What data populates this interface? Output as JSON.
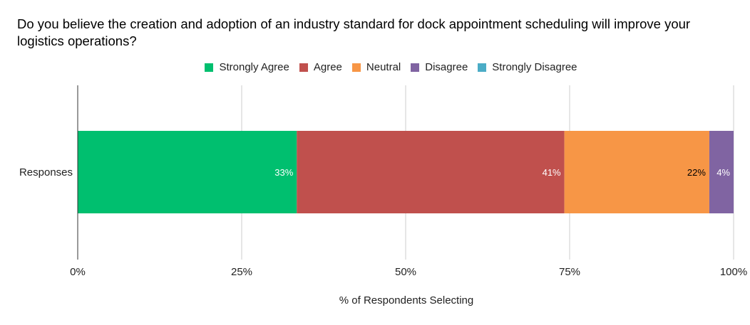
{
  "chart_data": {
    "type": "bar",
    "orientation": "horizontal",
    "stacked": "percent",
    "title": "Do you believe the creation and adoption of an industry standard for dock appointment scheduling will improve your logistics operations?",
    "xlabel": "% of Respondents Selecting",
    "ylabel": "",
    "categories": [
      "Responses"
    ],
    "series": [
      {
        "name": "Strongly Agree",
        "values": [
          33.4
        ],
        "label": "33%",
        "color": "#00bf6f"
      },
      {
        "name": "Agree",
        "values": [
          40.8
        ],
        "label": "41%",
        "color": "#c0504d"
      },
      {
        "name": "Neutral",
        "values": [
          22.1
        ],
        "label": "22%",
        "color": "#f79646"
      },
      {
        "name": "Disagree",
        "values": [
          3.7
        ],
        "label": "4%",
        "color": "#8064a2"
      },
      {
        "name": "Strongly Disagree",
        "values": [
          0
        ],
        "label": "",
        "color": "#4bacc6"
      }
    ],
    "xlim": [
      0,
      100
    ],
    "xticks": [
      "0%",
      "25%",
      "50%",
      "75%",
      "100%"
    ],
    "grid": true,
    "legend": "top-center"
  }
}
